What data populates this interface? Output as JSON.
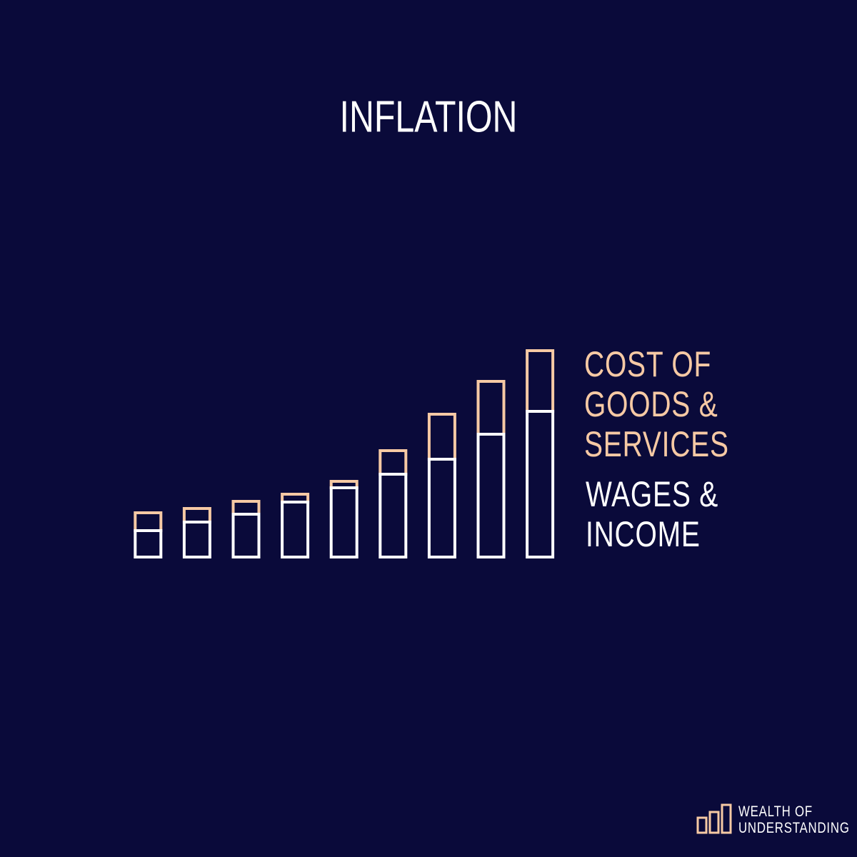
{
  "chart_data": {
    "type": "stacked_bar",
    "title": "INFLATION",
    "categories": [
      null,
      null,
      null,
      null,
      null,
      null,
      null,
      null,
      null
    ],
    "series": [
      {
        "name": "WAGES & INCOME",
        "color": "#ffffff",
        "values": [
          37,
          49,
          60,
          77,
          97,
          116,
          137,
          172,
          204
        ]
      },
      {
        "name": "COST OF GOODS & SERVICES",
        "color": "#f6c9a4",
        "values": [
          25,
          19,
          18,
          11,
          9,
          33,
          63,
          74,
          85
        ]
      }
    ],
    "ylim": [
      0,
      300
    ]
  },
  "brand": {
    "lines": [
      "WEALTH OF",
      "UNDERSTANDING"
    ]
  }
}
